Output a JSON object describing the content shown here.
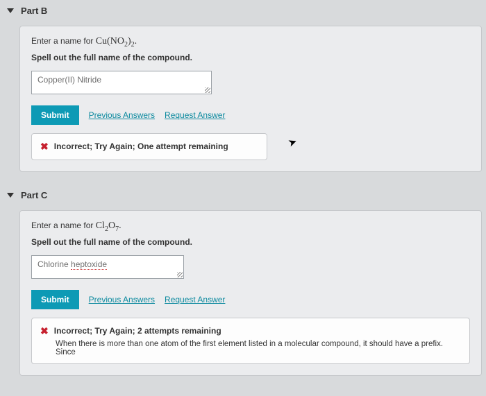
{
  "colors": {
    "page_bg": "#d8dadc",
    "card_bg": "#ebecee",
    "card_border": "#c6c8cb",
    "submit_bg": "#0d9ab5",
    "link_color": "#0d8a9f",
    "x_color": "#c6202e"
  },
  "partB": {
    "title": "Part B",
    "prompt_prefix": "Enter a name for ",
    "formula_html": "Cu(NO<span class='sub'>2</span>)<span class='sub'>2</span>.",
    "instruction": "Spell out the full name of the compound.",
    "input_value": "Copper(II) Nitride",
    "submit_label": "Submit",
    "prev_answers_label": "Previous Answers",
    "request_answer_label": "Request Answer",
    "feedback_msg": "Incorrect; Try Again; One attempt remaining"
  },
  "partC": {
    "title": "Part C",
    "prompt_prefix": "Enter a name for ",
    "formula_html": "Cl<span class='sub'>2</span>O<span class='sub'>7</span>.",
    "instruction": "Spell out the full name of the compound.",
    "input_value_html": "Chlorine <span class='dotted'>heptoxide</span>",
    "submit_label": "Submit",
    "prev_answers_label": "Previous Answers",
    "request_answer_label": "Request Answer",
    "feedback_msg": "Incorrect; Try Again; 2 attempts remaining",
    "feedback_hint": "When there is more than one atom of the first element listed in a molecular compound, it should have a prefix. Since"
  }
}
